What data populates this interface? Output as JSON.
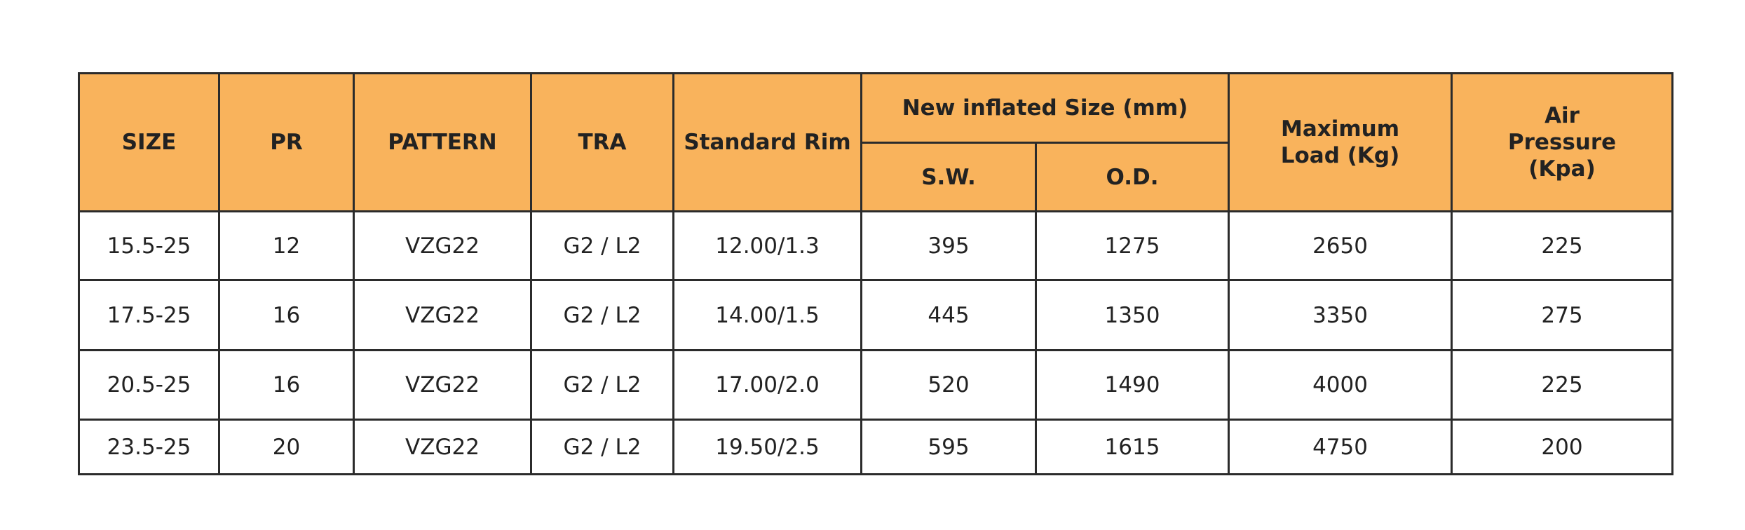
{
  "table": {
    "header": {
      "size": "SIZE",
      "pr": "PR",
      "pattern": "PATTERN",
      "tra": "TRA",
      "rim": "Standard Rim",
      "inflated": "New inflated Size (mm)",
      "sw": "S.W.",
      "od": "O.D.",
      "load": "Maximum Load (Kg)",
      "pressure": "Air Pressure (Kpa)"
    },
    "rows": [
      [
        "15.5-25",
        "12",
        "VZG22",
        "G2 / L2",
        "12.00/1.3",
        "395",
        "1275",
        "2650",
        "225"
      ],
      [
        "17.5-25",
        "16",
        "VZG22",
        "G2 / L2",
        "14.00/1.5",
        "445",
        "1350",
        "3350",
        "275"
      ],
      [
        "20.5-25",
        "16",
        "VZG22",
        "G2 / L2",
        "17.00/2.0",
        "520",
        "1490",
        "4000",
        "225"
      ],
      [
        "23.5-25",
        "20",
        "VZG22",
        "G2 / L2",
        "19.50/2.5",
        "595",
        "1615",
        "4750",
        "200"
      ]
    ]
  }
}
